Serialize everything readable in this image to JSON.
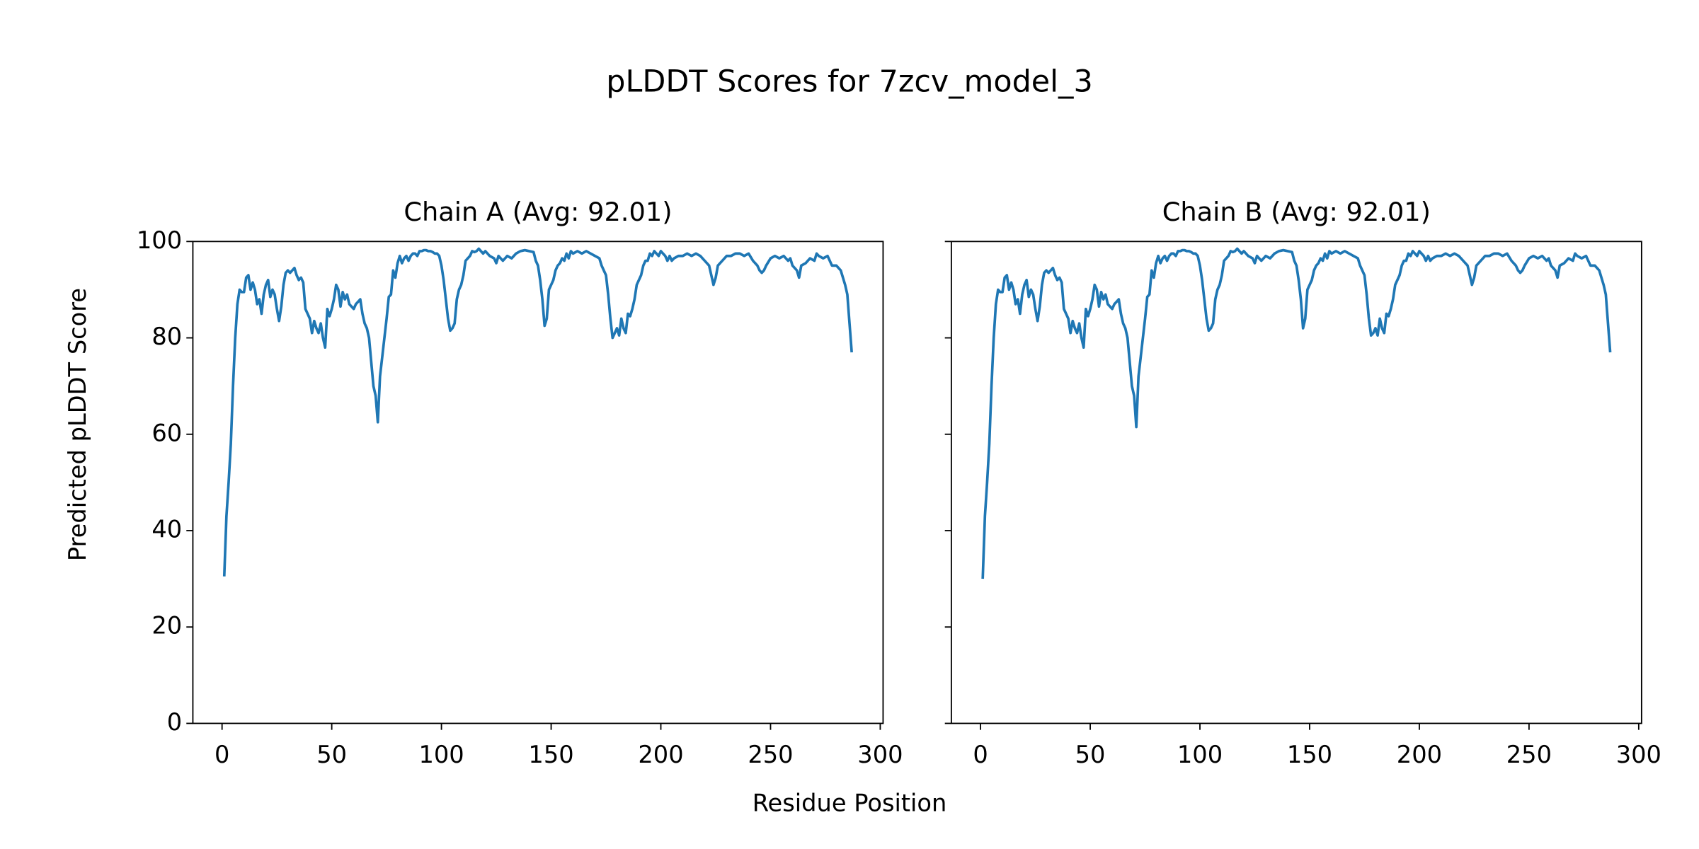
{
  "title": "pLDDT Scores for 7zcv_model_3",
  "xlabel": "Residue Position",
  "ylabel": "Predicted pLDDT Score",
  "chart_data": [
    {
      "type": "line",
      "title": "Chain A (Avg: 92.01)",
      "color": "#1f77b4",
      "x": [
        1,
        2,
        3,
        4,
        5,
        6,
        7,
        8,
        9,
        10,
        11,
        12,
        13,
        14,
        15,
        16,
        17,
        18,
        19,
        20,
        21,
        22,
        23,
        24,
        25,
        26,
        27,
        28,
        29,
        30,
        31,
        32,
        33,
        34,
        35,
        36,
        37,
        38,
        39,
        40,
        41,
        42,
        43,
        44,
        45,
        46,
        47,
        48,
        49,
        50,
        51,
        52,
        53,
        54,
        55,
        56,
        57,
        58,
        59,
        60,
        61,
        62,
        63,
        64,
        65,
        66,
        67,
        68,
        69,
        70,
        71,
        72,
        73,
        74,
        75,
        76,
        77,
        78,
        79,
        80,
        81,
        82,
        83,
        84,
        85,
        86,
        87,
        88,
        89,
        90,
        91,
        92,
        93,
        94,
        95,
        96,
        97,
        98,
        99,
        100,
        101,
        102,
        103,
        104,
        105,
        106,
        107,
        108,
        109,
        110,
        111,
        112,
        113,
        114,
        115,
        116,
        117,
        118,
        119,
        120,
        122,
        124,
        125,
        126,
        128,
        130,
        132,
        134,
        136,
        138,
        140,
        142,
        143,
        144,
        145,
        146,
        147,
        148,
        149,
        150,
        151,
        152,
        153,
        154,
        155,
        156,
        157,
        158,
        159,
        160,
        162,
        164,
        166,
        168,
        170,
        172,
        173,
        174,
        175,
        176,
        177,
        178,
        179,
        180,
        181,
        182,
        183,
        184,
        185,
        186,
        187,
        188,
        189,
        190,
        191,
        192,
        193,
        194,
        195,
        196,
        197,
        198,
        199,
        200,
        201,
        202,
        203,
        204,
        205,
        206,
        208,
        210,
        212,
        214,
        216,
        218,
        220,
        222,
        223,
        224,
        225,
        226,
        228,
        230,
        232,
        234,
        236,
        238,
        240,
        242,
        244,
        245,
        246,
        247,
        248,
        250,
        252,
        254,
        256,
        258,
        259,
        260,
        262,
        263,
        264,
        266,
        268,
        270,
        271,
        272,
        274,
        276,
        278,
        280,
        282,
        284,
        285,
        286,
        287
      ],
      "values": [
        30.5,
        43,
        50,
        58,
        70,
        80,
        87,
        90,
        89.5,
        89.5,
        92.5,
        93,
        90,
        91.5,
        90,
        87,
        88,
        85,
        89,
        91,
        92,
        88.5,
        90,
        89,
        86,
        83.5,
        86.5,
        91,
        93.5,
        94,
        93.5,
        94,
        94.5,
        93,
        92,
        92.5,
        91.5,
        86,
        85,
        84,
        81,
        83.5,
        82,
        81,
        83,
        80,
        78,
        86,
        84.5,
        86,
        88,
        91,
        90,
        86.5,
        89.5,
        88,
        89,
        87,
        86.5,
        86,
        87,
        87.5,
        88,
        85,
        83,
        82,
        80,
        75,
        70,
        68,
        62.5,
        72,
        76,
        80,
        84,
        88.5,
        89,
        94,
        92.5,
        95.5,
        97,
        95.5,
        96.5,
        97,
        96,
        97,
        97.5,
        97.5,
        97,
        98,
        98,
        98.2,
        98.2,
        98,
        98,
        97.8,
        97.5,
        97.5,
        97,
        95,
        92,
        88,
        84,
        81.5,
        82,
        83,
        88,
        90,
        91,
        93,
        96,
        96.5,
        97,
        98,
        97.8,
        98,
        98.5,
        98,
        97.5,
        98,
        97,
        96.5,
        95.5,
        97,
        96,
        97,
        96.5,
        97.5,
        98,
        98.2,
        98,
        97.8,
        96,
        95,
        92,
        88,
        82.5,
        84,
        90,
        91,
        92,
        94,
        95,
        95.5,
        96.5,
        96,
        97.5,
        96.5,
        98,
        97.5,
        98,
        97.5,
        98,
        97.5,
        97,
        96.5,
        95,
        94,
        93,
        89,
        84,
        80,
        81,
        82,
        80.5,
        84,
        82,
        81,
        85,
        84.5,
        86,
        88,
        91,
        92,
        93,
        95,
        96,
        96,
        97.5,
        97,
        98,
        97.5,
        97,
        98,
        97.5,
        97,
        96,
        97,
        96,
        96.5,
        97,
        97,
        97.5,
        97,
        97.5,
        97,
        96,
        95,
        93,
        91,
        92.5,
        95,
        96,
        97,
        97,
        97.5,
        97.5,
        97,
        97.5,
        96,
        95,
        94,
        93.5,
        94,
        95,
        96.5,
        97,
        96.5,
        97,
        96,
        96.5,
        95,
        94,
        92.5,
        95,
        95.5,
        96.5,
        96,
        97.5,
        97,
        96.5,
        97,
        95,
        95,
        94,
        91,
        89,
        83,
        77
      ],
      "xlim": [
        -13.3,
        301.3
      ],
      "ylim": [
        0,
        100
      ],
      "xticks": [
        0,
        50,
        100,
        150,
        200,
        250,
        300
      ],
      "yticks": [
        0,
        20,
        40,
        60,
        80,
        100
      ],
      "show_ytick_labels": true
    },
    {
      "type": "line",
      "title": "Chain B (Avg: 92.01)",
      "color": "#1f77b4",
      "x": [
        1,
        2,
        3,
        4,
        5,
        6,
        7,
        8,
        9,
        10,
        11,
        12,
        13,
        14,
        15,
        16,
        17,
        18,
        19,
        20,
        21,
        22,
        23,
        24,
        25,
        26,
        27,
        28,
        29,
        30,
        31,
        32,
        33,
        34,
        35,
        36,
        37,
        38,
        39,
        40,
        41,
        42,
        43,
        44,
        45,
        46,
        47,
        48,
        49,
        50,
        51,
        52,
        53,
        54,
        55,
        56,
        57,
        58,
        59,
        60,
        61,
        62,
        63,
        64,
        65,
        66,
        67,
        68,
        69,
        70,
        71,
        72,
        73,
        74,
        75,
        76,
        77,
        78,
        79,
        80,
        81,
        82,
        83,
        84,
        85,
        86,
        87,
        88,
        89,
        90,
        91,
        92,
        93,
        94,
        95,
        96,
        97,
        98,
        99,
        100,
        101,
        102,
        103,
        104,
        105,
        106,
        107,
        108,
        109,
        110,
        111,
        112,
        113,
        114,
        115,
        116,
        117,
        118,
        119,
        120,
        122,
        124,
        125,
        126,
        128,
        130,
        132,
        134,
        136,
        138,
        140,
        142,
        143,
        144,
        145,
        146,
        147,
        148,
        149,
        150,
        151,
        152,
        153,
        154,
        155,
        156,
        157,
        158,
        159,
        160,
        162,
        164,
        166,
        168,
        170,
        172,
        173,
        174,
        175,
        176,
        177,
        178,
        179,
        180,
        181,
        182,
        183,
        184,
        185,
        186,
        187,
        188,
        189,
        190,
        191,
        192,
        193,
        194,
        195,
        196,
        197,
        198,
        199,
        200,
        201,
        202,
        203,
        204,
        205,
        206,
        208,
        210,
        212,
        214,
        216,
        218,
        220,
        222,
        223,
        224,
        225,
        226,
        228,
        230,
        232,
        234,
        236,
        238,
        240,
        242,
        244,
        245,
        246,
        247,
        248,
        250,
        252,
        254,
        256,
        258,
        259,
        260,
        262,
        263,
        264,
        266,
        268,
        270,
        271,
        272,
        274,
        276,
        278,
        280,
        282,
        284,
        285,
        286,
        287
      ],
      "values": [
        30,
        43,
        50,
        58,
        70,
        80,
        87,
        90,
        89.5,
        89.5,
        92.5,
        93,
        90,
        91.5,
        90,
        87,
        88,
        85,
        89,
        91,
        92,
        88.5,
        90,
        89,
        86,
        83.5,
        86.5,
        91,
        93.5,
        94,
        93.5,
        94,
        94.5,
        93,
        92,
        92.5,
        91.5,
        86,
        85,
        84,
        81,
        83.5,
        82,
        81,
        83,
        80,
        78,
        86,
        84.5,
        86,
        88,
        91,
        90,
        86.5,
        89.5,
        88,
        89,
        87,
        86.5,
        86,
        87,
        87.5,
        88,
        85,
        83,
        82,
        80,
        75,
        70,
        68,
        61.5,
        72,
        76,
        80,
        84,
        88.5,
        89,
        94,
        92.5,
        95.5,
        97,
        95.5,
        96.5,
        97,
        96,
        97,
        97.5,
        97.5,
        97,
        98,
        98,
        98.2,
        98.2,
        98,
        98,
        97.8,
        97.5,
        97.5,
        97,
        95,
        92,
        88,
        84,
        81.5,
        82,
        83,
        88,
        90,
        91,
        93,
        96,
        96.5,
        97,
        98,
        97.8,
        98,
        98.5,
        98,
        97.5,
        98,
        97,
        96.5,
        95.5,
        97,
        96,
        97,
        96.5,
        97.5,
        98,
        98.2,
        98,
        97.8,
        96,
        95,
        92,
        88,
        82,
        84,
        90,
        91,
        92,
        94,
        95,
        95.5,
        96.5,
        96,
        97.5,
        96.5,
        98,
        97.5,
        98,
        97.5,
        98,
        97.5,
        97,
        96.5,
        95,
        94,
        93,
        89,
        84,
        80.5,
        81,
        82,
        80.5,
        84,
        82,
        81,
        85,
        84.5,
        86,
        88,
        91,
        92,
        93,
        95,
        96,
        96,
        97.5,
        97,
        98,
        97.5,
        97,
        98,
        97.5,
        97,
        96,
        97,
        96,
        96.5,
        97,
        97,
        97.5,
        97,
        97.5,
        97,
        96,
        95,
        93,
        91,
        92.5,
        95,
        96,
        97,
        97,
        97.5,
        97.5,
        97,
        97.5,
        96,
        95,
        94,
        93.5,
        94,
        95,
        96.5,
        97,
        96.5,
        97,
        96,
        96.5,
        95,
        94,
        92.5,
        95,
        95.5,
        96.5,
        96,
        97.5,
        97,
        96.5,
        97,
        95,
        95,
        94,
        91,
        89,
        83,
        77
      ],
      "xlim": [
        -13.3,
        301.3
      ],
      "ylim": [
        0,
        100
      ],
      "xticks": [
        0,
        50,
        100,
        150,
        200,
        250,
        300
      ],
      "yticks": [
        0,
        20,
        40,
        60,
        80,
        100
      ],
      "show_ytick_labels": false
    }
  ]
}
